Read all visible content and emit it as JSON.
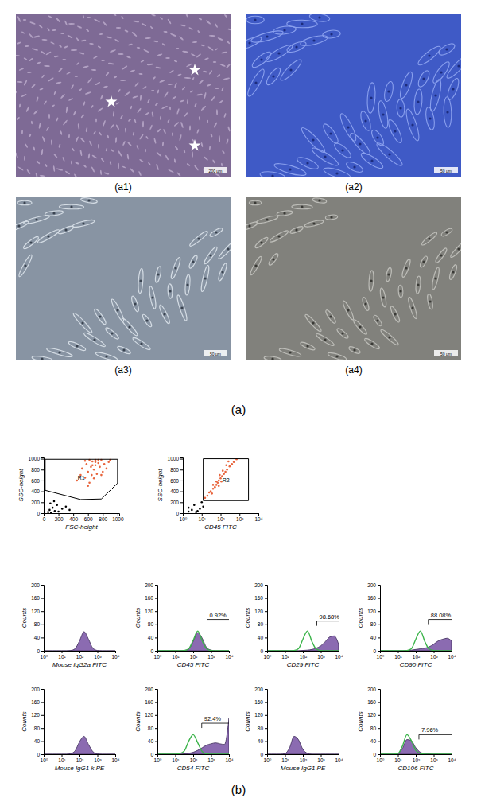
{
  "figure": {
    "panel_labels": [
      "(a)",
      "(b)"
    ],
    "images": [
      {
        "label": "(a1)",
        "scale_bar": "200 μm"
      },
      {
        "label": "(a2)",
        "scale_bar": "50 μm"
      },
      {
        "label": "(a3)",
        "scale_bar": "50 μm"
      },
      {
        "label": "(a4)",
        "scale_bar": "50 μm"
      }
    ]
  },
  "chart_data": [
    {
      "type": "scatter",
      "xlabel": "FSC-height",
      "ylabel": "SSC-height",
      "xlim": [
        0,
        1023
      ],
      "xticks": [
        0,
        200,
        400,
        600,
        800,
        1000
      ],
      "ylim": [
        0,
        1023
      ],
      "yticks": [
        0,
        200,
        400,
        600,
        800,
        1000
      ],
      "series": [
        {
          "color": "#e8643c",
          "x": [
            450,
            500,
            520,
            560,
            580,
            600,
            620,
            640,
            650,
            660,
            680,
            700,
            700,
            720,
            740,
            760,
            780,
            800,
            820,
            850,
            880,
            900,
            620,
            680,
            560,
            740,
            660,
            600,
            700,
            780
          ],
          "values": [
            600,
            700,
            820,
            650,
            900,
            760,
            980,
            850,
            700,
            950,
            800,
            880,
            980,
            720,
            920,
            850,
            980,
            760,
            900,
            820,
            940,
            980,
            560,
            640,
            960,
            980,
            880,
            500,
            940,
            700
          ]
        },
        {
          "color": "#000000",
          "x": [
            60,
            80,
            100,
            120,
            150,
            180,
            200,
            250,
            300,
            90,
            140,
            350
          ],
          "values": [
            20,
            60,
            10,
            100,
            40,
            150,
            30,
            80,
            120,
            180,
            220,
            60
          ]
        }
      ],
      "gate": {
        "label": "R1",
        "x": [
          20,
          1000,
          1000,
          780,
          500,
          20
        ],
        "y": [
          990,
          990,
          550,
          260,
          250,
          420
        ]
      }
    },
    {
      "type": "scatter",
      "xlabel": "CD45 FITC",
      "ylabel": "SSC-height",
      "log": "x",
      "xlim": [
        1,
        10000
      ],
      "xticks": [
        {
          "value": 1,
          "label": "10⁰"
        },
        {
          "value": 10,
          "label": "10¹"
        },
        {
          "value": 100,
          "label": "10²"
        },
        {
          "value": 1000,
          "label": "10³"
        },
        {
          "value": 10000,
          "label": "10⁴"
        }
      ],
      "ylim": [
        0,
        1023
      ],
      "yticks": [
        0,
        200,
        400,
        600,
        800,
        1000
      ],
      "series": [
        {
          "color": "#e8643c",
          "x": [
            15,
            20,
            25,
            30,
            40,
            50,
            60,
            70,
            80,
            100,
            120,
            150,
            180,
            220,
            300,
            400,
            500,
            700,
            40,
            60,
            90,
            130,
            200,
            260,
            35,
            80,
            110
          ],
          "values": [
            280,
            320,
            380,
            400,
            450,
            480,
            520,
            560,
            600,
            640,
            680,
            720,
            760,
            800,
            860,
            900,
            940,
            990,
            520,
            580,
            700,
            780,
            880,
            950,
            360,
            500,
            580
          ]
        },
        {
          "color": "#000000",
          "x": [
            1,
            2,
            3,
            5,
            8,
            12,
            4,
            6,
            2,
            10
          ],
          "values": [
            10,
            30,
            60,
            20,
            80,
            120,
            150,
            40,
            100,
            200
          ]
        }
      ],
      "gate": {
        "label": "R2",
        "x": [
          12,
          3000,
          3000,
          12
        ],
        "y": [
          230,
          230,
          1000,
          1000
        ]
      }
    },
    {
      "type": "area",
      "xlabel": "Mouse IgG2a FITC",
      "ylabel": "Counts",
      "log": "x",
      "xlim": [
        1,
        10000
      ],
      "xticks": [
        {
          "value": 1,
          "label": "10⁰"
        },
        {
          "value": 10,
          "label": "10¹"
        },
        {
          "value": 100,
          "label": "10²"
        },
        {
          "value": 1000,
          "label": "10³"
        },
        {
          "value": 10000,
          "label": "10⁴"
        }
      ],
      "ylim": [
        0,
        200
      ],
      "yticks": [
        0,
        40,
        80,
        120,
        160,
        200
      ],
      "x": [
        1,
        1.8,
        3.2,
        5.6,
        10,
        18,
        32,
        56,
        100,
        180,
        320,
        560,
        1000,
        1800,
        3200,
        5600,
        10000
      ],
      "series": [
        {
          "type": "area",
          "color": "#8b6bb1",
          "values": [
            0,
            0,
            0,
            0,
            0,
            0,
            1,
            6,
            30,
            58,
            35,
            8,
            1,
            0,
            0,
            0,
            0
          ]
        }
      ]
    },
    {
      "type": "area",
      "xlabel": "CD45 FITC",
      "ylabel": "Counts",
      "log": "x",
      "xlim": [
        1,
        10000
      ],
      "xticks": [
        {
          "value": 1,
          "label": "10⁰"
        },
        {
          "value": 10,
          "label": "10¹"
        },
        {
          "value": 100,
          "label": "10²"
        },
        {
          "value": 1000,
          "label": "10³"
        },
        {
          "value": 10000,
          "label": "10⁴"
        }
      ],
      "ylim": [
        0,
        200
      ],
      "yticks": [
        0,
        40,
        80,
        120,
        160,
        200
      ],
      "x": [
        1,
        1.8,
        3.2,
        5.6,
        10,
        18,
        32,
        56,
        100,
        180,
        320,
        560,
        1000,
        1800,
        3200,
        5600,
        10000
      ],
      "series": [
        {
          "type": "area",
          "color": "#8b6bb1",
          "values": [
            0,
            0,
            0,
            0,
            0,
            0,
            1,
            5,
            28,
            55,
            38,
            10,
            2,
            0,
            0,
            0,
            0
          ]
        },
        {
          "type": "line",
          "color": "#3cb44b",
          "values": [
            0,
            0,
            0,
            0,
            0,
            0,
            1,
            6,
            32,
            60,
            30,
            6,
            1,
            0,
            0,
            0,
            0
          ]
        }
      ],
      "gate": {
        "x": [
          600,
          10000
        ],
        "y": 95,
        "value": 0.92,
        "value_label": "0.92%"
      }
    },
    {
      "type": "area",
      "xlabel": "CD29 FITC",
      "ylabel": "Counts",
      "log": "x",
      "xlim": [
        1,
        10000
      ],
      "xticks": [
        {
          "value": 1,
          "label": "10⁰"
        },
        {
          "value": 10,
          "label": "10¹"
        },
        {
          "value": 100,
          "label": "10²"
        },
        {
          "value": 1000,
          "label": "10³"
        },
        {
          "value": 10000,
          "label": "10⁴"
        }
      ],
      "ylim": [
        0,
        200
      ],
      "yticks": [
        0,
        40,
        80,
        120,
        160,
        200
      ],
      "x": [
        1,
        1.8,
        3.2,
        5.6,
        10,
        18,
        32,
        56,
        100,
        180,
        320,
        560,
        1000,
        1800,
        3200,
        5600,
        10000
      ],
      "series": [
        {
          "type": "area",
          "color": "#8b6bb1",
          "values": [
            0,
            0,
            0,
            0,
            0,
            0,
            0,
            0,
            1,
            2,
            4,
            8,
            15,
            28,
            42,
            45,
            20
          ]
        },
        {
          "type": "line",
          "color": "#3cb44b",
          "values": [
            0,
            0,
            0,
            0,
            0,
            0,
            1,
            6,
            35,
            60,
            28,
            5,
            1,
            0,
            0,
            0,
            0
          ]
        }
      ],
      "gate": {
        "x": [
          600,
          10000
        ],
        "y": 90,
        "value": 98.68,
        "value_label": "98.68%"
      }
    },
    {
      "type": "area",
      "xlabel": "CD90 FITC",
      "ylabel": "Counts",
      "log": "x",
      "xlim": [
        1,
        10000
      ],
      "xticks": [
        {
          "value": 1,
          "label": "10⁰"
        },
        {
          "value": 10,
          "label": "10¹"
        },
        {
          "value": 100,
          "label": "10²"
        },
        {
          "value": 1000,
          "label": "10³"
        },
        {
          "value": 10000,
          "label": "10⁴"
        }
      ],
      "ylim": [
        0,
        200
      ],
      "yticks": [
        0,
        40,
        80,
        120,
        160,
        200
      ],
      "x": [
        1,
        1.8,
        3.2,
        5.6,
        10,
        18,
        32,
        56,
        100,
        180,
        320,
        560,
        1000,
        1800,
        3200,
        5600,
        10000
      ],
      "series": [
        {
          "type": "area",
          "color": "#8b6bb1",
          "values": [
            0,
            0,
            0,
            0,
            0,
            0,
            1,
            2,
            4,
            6,
            8,
            12,
            20,
            30,
            35,
            38,
            30
          ]
        },
        {
          "type": "line",
          "color": "#3cb44b",
          "values": [
            0,
            0,
            0,
            0,
            0,
            0,
            1,
            6,
            35,
            60,
            28,
            5,
            1,
            0,
            0,
            0,
            0
          ]
        }
      ],
      "gate": {
        "x": [
          500,
          10000
        ],
        "y": 95,
        "value": 88.08,
        "value_label": "88.08%"
      }
    },
    {
      "type": "area",
      "xlabel": "Mouse IgG1 k PE",
      "ylabel": "Counts",
      "log": "x",
      "xlim": [
        1,
        10000
      ],
      "xticks": [
        {
          "value": 1,
          "label": "10⁰"
        },
        {
          "value": 10,
          "label": "10¹"
        },
        {
          "value": 100,
          "label": "10²"
        },
        {
          "value": 1000,
          "label": "10³"
        },
        {
          "value": 10000,
          "label": "10⁴"
        }
      ],
      "ylim": [
        0,
        200
      ],
      "yticks": [
        0,
        40,
        80,
        120,
        160,
        200
      ],
      "x": [
        1,
        1.8,
        3.2,
        5.6,
        10,
        18,
        32,
        56,
        100,
        180,
        320,
        560,
        1000,
        1800,
        3200,
        5600,
        10000
      ],
      "series": [
        {
          "type": "area",
          "color": "#8b6bb1",
          "values": [
            0,
            0,
            0,
            0,
            0,
            0,
            2,
            10,
            38,
            55,
            30,
            8,
            1,
            0,
            0,
            0,
            0
          ]
        }
      ]
    },
    {
      "type": "area",
      "xlabel": "CD54 FITC",
      "ylabel": "Counts",
      "log": "x",
      "xlim": [
        1,
        10000
      ],
      "xticks": [
        {
          "value": 1,
          "label": "10⁰"
        },
        {
          "value": 10,
          "label": "10¹"
        },
        {
          "value": 100,
          "label": "10²"
        },
        {
          "value": 1000,
          "label": "10³"
        },
        {
          "value": 10000,
          "label": "10⁴"
        }
      ],
      "ylim": [
        0,
        200
      ],
      "yticks": [
        0,
        40,
        80,
        120,
        160,
        200
      ],
      "x": [
        1,
        1.8,
        3.2,
        5.6,
        10,
        18,
        32,
        56,
        100,
        180,
        320,
        560,
        1000,
        1800,
        3200,
        5600,
        10000
      ],
      "series": [
        {
          "type": "area",
          "color": "#8b6bb1",
          "values": [
            0,
            0,
            0,
            0,
            0,
            0,
            1,
            3,
            6,
            12,
            20,
            28,
            32,
            35,
            32,
            30,
            110
          ]
        },
        {
          "type": "line",
          "color": "#3cb44b",
          "values": [
            0,
            0,
            0,
            0,
            0,
            2,
            10,
            40,
            60,
            35,
            8,
            1,
            0,
            0,
            0,
            0,
            0
          ]
        }
      ],
      "gate": {
        "x": [
          300,
          10000
        ],
        "y": 95,
        "value": 92.4,
        "value_label": "92.4%"
      }
    },
    {
      "type": "area",
      "xlabel": "Mouse IgG1 PE",
      "ylabel": "Counts",
      "log": "x",
      "xlim": [
        1,
        10000
      ],
      "xticks": [
        {
          "value": 1,
          "label": "10⁰"
        },
        {
          "value": 10,
          "label": "10¹"
        },
        {
          "value": 100,
          "label": "10²"
        },
        {
          "value": 1000,
          "label": "10³"
        },
        {
          "value": 10000,
          "label": "10⁴"
        }
      ],
      "ylim": [
        0,
        200
      ],
      "yticks": [
        0,
        40,
        80,
        120,
        160,
        200
      ],
      "x": [
        1,
        1.8,
        3.2,
        5.6,
        10,
        18,
        32,
        56,
        100,
        180,
        320,
        560,
        1000,
        1800,
        3200,
        5600,
        10000
      ],
      "series": [
        {
          "type": "area",
          "color": "#8b6bb1",
          "values": [
            0,
            0,
            0,
            0,
            2,
            20,
            55,
            45,
            15,
            3,
            0,
            0,
            0,
            0,
            0,
            0,
            0
          ]
        }
      ]
    },
    {
      "type": "area",
      "xlabel": "CD106 FITC",
      "ylabel": "Counts",
      "log": "x",
      "xlim": [
        1,
        10000
      ],
      "xticks": [
        {
          "value": 1,
          "label": "10⁰"
        },
        {
          "value": 10,
          "label": "10¹"
        },
        {
          "value": 100,
          "label": "10²"
        },
        {
          "value": 1000,
          "label": "10³"
        },
        {
          "value": 10000,
          "label": "10⁴"
        }
      ],
      "ylim": [
        0,
        200
      ],
      "yticks": [
        0,
        40,
        80,
        120,
        160,
        200
      ],
      "x": [
        1,
        1.8,
        3.2,
        5.6,
        10,
        18,
        32,
        56,
        100,
        180,
        320,
        560,
        1000,
        1800,
        3200,
        5600,
        10000
      ],
      "series": [
        {
          "type": "area",
          "color": "#8b6bb1",
          "values": [
            0,
            0,
            0,
            0,
            2,
            18,
            45,
            42,
            20,
            6,
            2,
            1,
            0,
            0,
            0,
            0,
            0
          ]
        },
        {
          "type": "line",
          "color": "#3cb44b",
          "values": [
            0,
            0,
            0,
            0,
            2,
            25,
            60,
            42,
            12,
            2,
            0,
            0,
            0,
            0,
            0,
            0,
            0
          ]
        }
      ],
      "gate": {
        "x": [
          150,
          10000
        ],
        "y": 60,
        "value": 7.96,
        "value_label": "7.96%"
      }
    }
  ]
}
